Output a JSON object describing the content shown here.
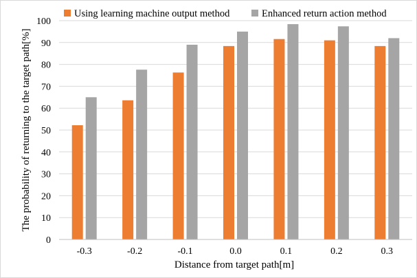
{
  "chart_data": {
    "type": "bar",
    "categories": [
      "-0.3",
      "-0.2",
      "-0.1",
      "0.0",
      "0.1",
      "0.2",
      "0.3"
    ],
    "series": [
      {
        "name": "Using learning machine output method",
        "color": "#ed7d31",
        "values": [
          52.2,
          63.6,
          76.3,
          88.4,
          91.6,
          91.0,
          88.4
        ]
      },
      {
        "name": "Enhanced return action method",
        "color": "#a5a5a5",
        "values": [
          65.0,
          77.6,
          89.0,
          95.0,
          98.4,
          97.4,
          92.0
        ]
      }
    ],
    "xlabel": "Distance from target path[m]",
    "ylabel": "The probability of returning to the target  path[%]",
    "ylim": [
      0,
      100
    ],
    "yticks": [
      "0",
      "10",
      "20",
      "30",
      "40",
      "50",
      "60",
      "70",
      "80",
      "90",
      "100"
    ],
    "grid": true,
    "legend_position": "top"
  }
}
